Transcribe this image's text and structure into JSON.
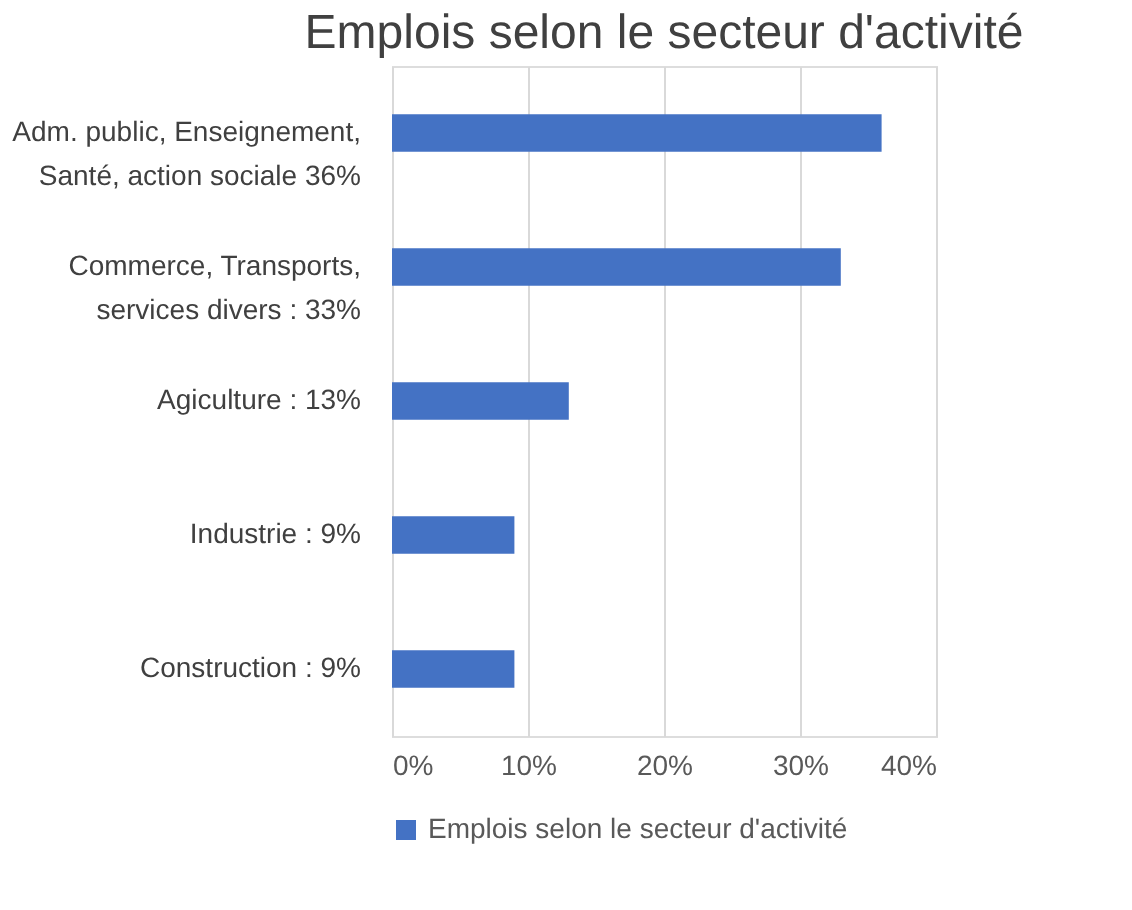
{
  "chart_data": {
    "type": "bar",
    "orientation": "horizontal",
    "title": "Emplois selon le secteur d'activité",
    "categories": [
      "Adm. public, Enseignement,\nSanté, action sociale 36%",
      "Commerce, Transports,\nservices divers : 33%",
      "Agiculture : 13%",
      "Industrie : 9%",
      "Construction : 9%"
    ],
    "series": [
      {
        "name": "Emplois selon le secteur d'activité",
        "color": "#4472c4",
        "values": [
          36,
          33,
          13,
          9,
          9
        ]
      }
    ],
    "xlim": [
      0,
      40
    ],
    "xticks": [
      {
        "value": 0,
        "label": "0%"
      },
      {
        "value": 10,
        "label": "10%"
      },
      {
        "value": 20,
        "label": "20%"
      },
      {
        "value": 30,
        "label": "30%"
      },
      {
        "value": 40,
        "label": "40%"
      }
    ],
    "grid": "x",
    "legend": "bottom"
  }
}
